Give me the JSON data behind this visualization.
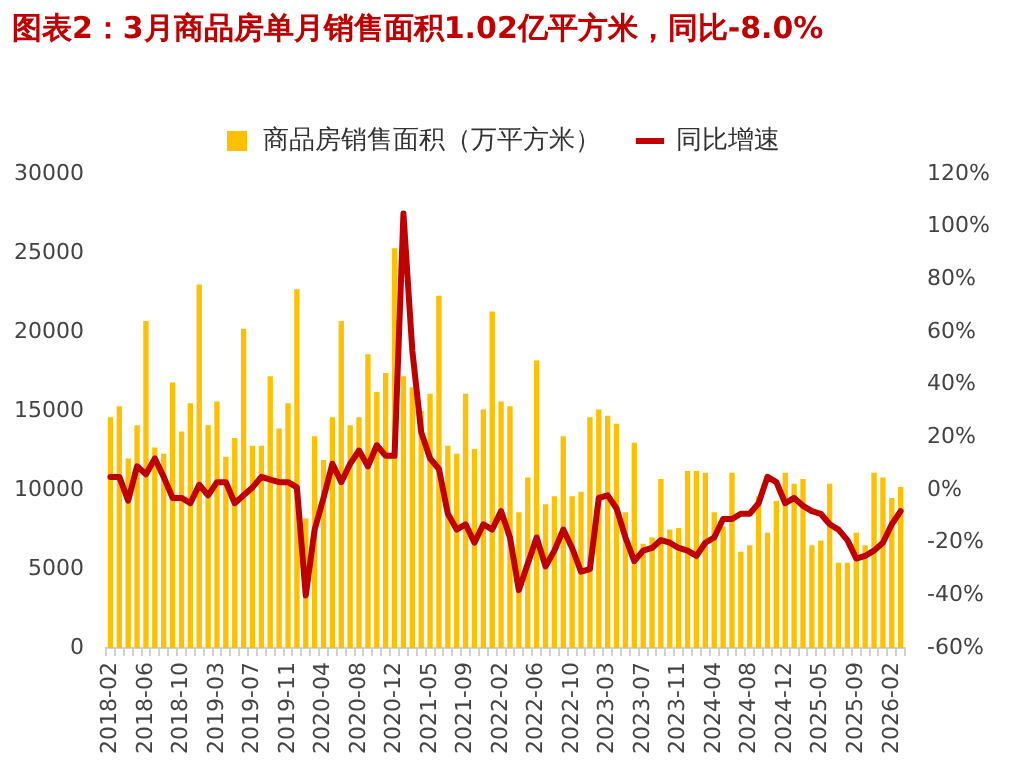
{
  "chart_data": {
    "type": "bar",
    "title": "图表2：3月商品房单月销售面积1.02亿平方米，同比-8.0%",
    "categories": [
      "2018-02",
      null,
      null,
      null,
      "2018-06",
      null,
      null,
      null,
      "2018-10",
      null,
      null,
      null,
      "2019-03",
      null,
      null,
      null,
      "2019-07",
      null,
      null,
      null,
      "2019-11",
      null,
      null,
      null,
      "2020-04",
      null,
      null,
      null,
      "2020-08",
      null,
      null,
      null,
      "2020-12",
      null,
      null,
      null,
      "2021-05",
      null,
      null,
      null,
      "2021-09",
      null,
      null,
      null,
      "2022-02",
      null,
      null,
      null,
      "2022-06",
      null,
      null,
      null,
      "2022-10",
      null,
      null,
      null,
      "2023-03",
      null,
      null,
      null,
      "2023-07",
      null,
      null,
      null,
      "2023-11",
      null,
      null,
      null,
      "2024-04",
      null,
      null,
      null,
      "2024-08",
      null,
      null,
      null,
      "2024-12",
      null,
      null,
      null,
      "2025-05",
      null,
      null,
      null,
      "2025-09",
      null,
      null,
      null,
      "2026-02",
      null
    ],
    "series": [
      {
        "name": "商品房销售面积（万平方米）",
        "color": "#ffc000",
        "values": [
          14600,
          15300,
          12000,
          14100,
          20700,
          12700,
          12300,
          16800,
          13700,
          15500,
          23000,
          14100,
          15600,
          12100,
          13300,
          20200,
          12800,
          12800,
          17200,
          13900,
          15500,
          22700,
          8200,
          13400,
          11900,
          14600,
          20700,
          14100,
          14600,
          18600,
          16200,
          17400,
          25300,
          17200,
          16500,
          15000,
          16100,
          22300,
          12800,
          12300,
          16100,
          12600,
          15100,
          21300,
          15600,
          15300,
          8600,
          10800,
          18200,
          9100,
          9600,
          13400,
          9600,
          9900,
          14600,
          15100,
          14700,
          14200,
          8600,
          13000,
          6600,
          7000,
          10700,
          7500,
          7600,
          11200,
          11200,
          11100,
          8600,
          7700,
          11100,
          6100,
          6500,
          9600,
          7300,
          9300,
          11100,
          10400,
          10700,
          6500,
          6800,
          10400,
          5400,
          5400,
          7300,
          6500,
          11100,
          10800,
          9500,
          10200
        ]
      },
      {
        "name": "同比增速",
        "type": "line",
        "axis": "y2",
        "color": "#c00000",
        "values": [
          5,
          5,
          -4,
          9,
          6,
          12,
          5,
          -3,
          -3,
          -5,
          2,
          -2,
          3,
          3,
          -5,
          -2,
          1,
          5,
          4,
          3,
          3,
          1,
          -40,
          -15,
          -3,
          10,
          3,
          10,
          15,
          9,
          17,
          13,
          13,
          105,
          53,
          22,
          12,
          8,
          -9,
          -15,
          -13,
          -20,
          -13,
          -15,
          -8,
          -18,
          -38,
          -28,
          -18,
          -29,
          -23,
          -15,
          -22,
          -31,
          -30,
          -3,
          -2,
          -7,
          -18,
          -27,
          -23,
          -22,
          -19,
          -20,
          -22,
          -23,
          -25,
          -20,
          -18,
          -11,
          -11,
          -9,
          -9,
          -5,
          5,
          3,
          -5,
          -3,
          -6,
          -8,
          -9,
          -13,
          -15,
          -19,
          -26,
          -25,
          -23,
          -20,
          -13,
          -8
        ]
      }
    ],
    "ylim": [
      0,
      30000
    ],
    "yticks": [
      0,
      5000,
      10000,
      15000,
      20000,
      25000,
      30000
    ],
    "y2lim": [
      -60,
      120
    ],
    "y2ticks": [
      {
        "value": -60,
        "label": "-60%"
      },
      {
        "value": -40,
        "label": "-40%"
      },
      {
        "value": -20,
        "label": "-20%"
      },
      {
        "value": 0,
        "label": "0%"
      },
      {
        "value": 20,
        "label": "20%"
      },
      {
        "value": 40,
        "label": "40%"
      },
      {
        "value": 60,
        "label": "60%"
      },
      {
        "value": 80,
        "label": "80%"
      },
      {
        "value": 100,
        "label": "100%"
      },
      {
        "value": 120,
        "label": "120%"
      }
    ],
    "legend": "top",
    "marker": "none",
    "grid": false
  }
}
